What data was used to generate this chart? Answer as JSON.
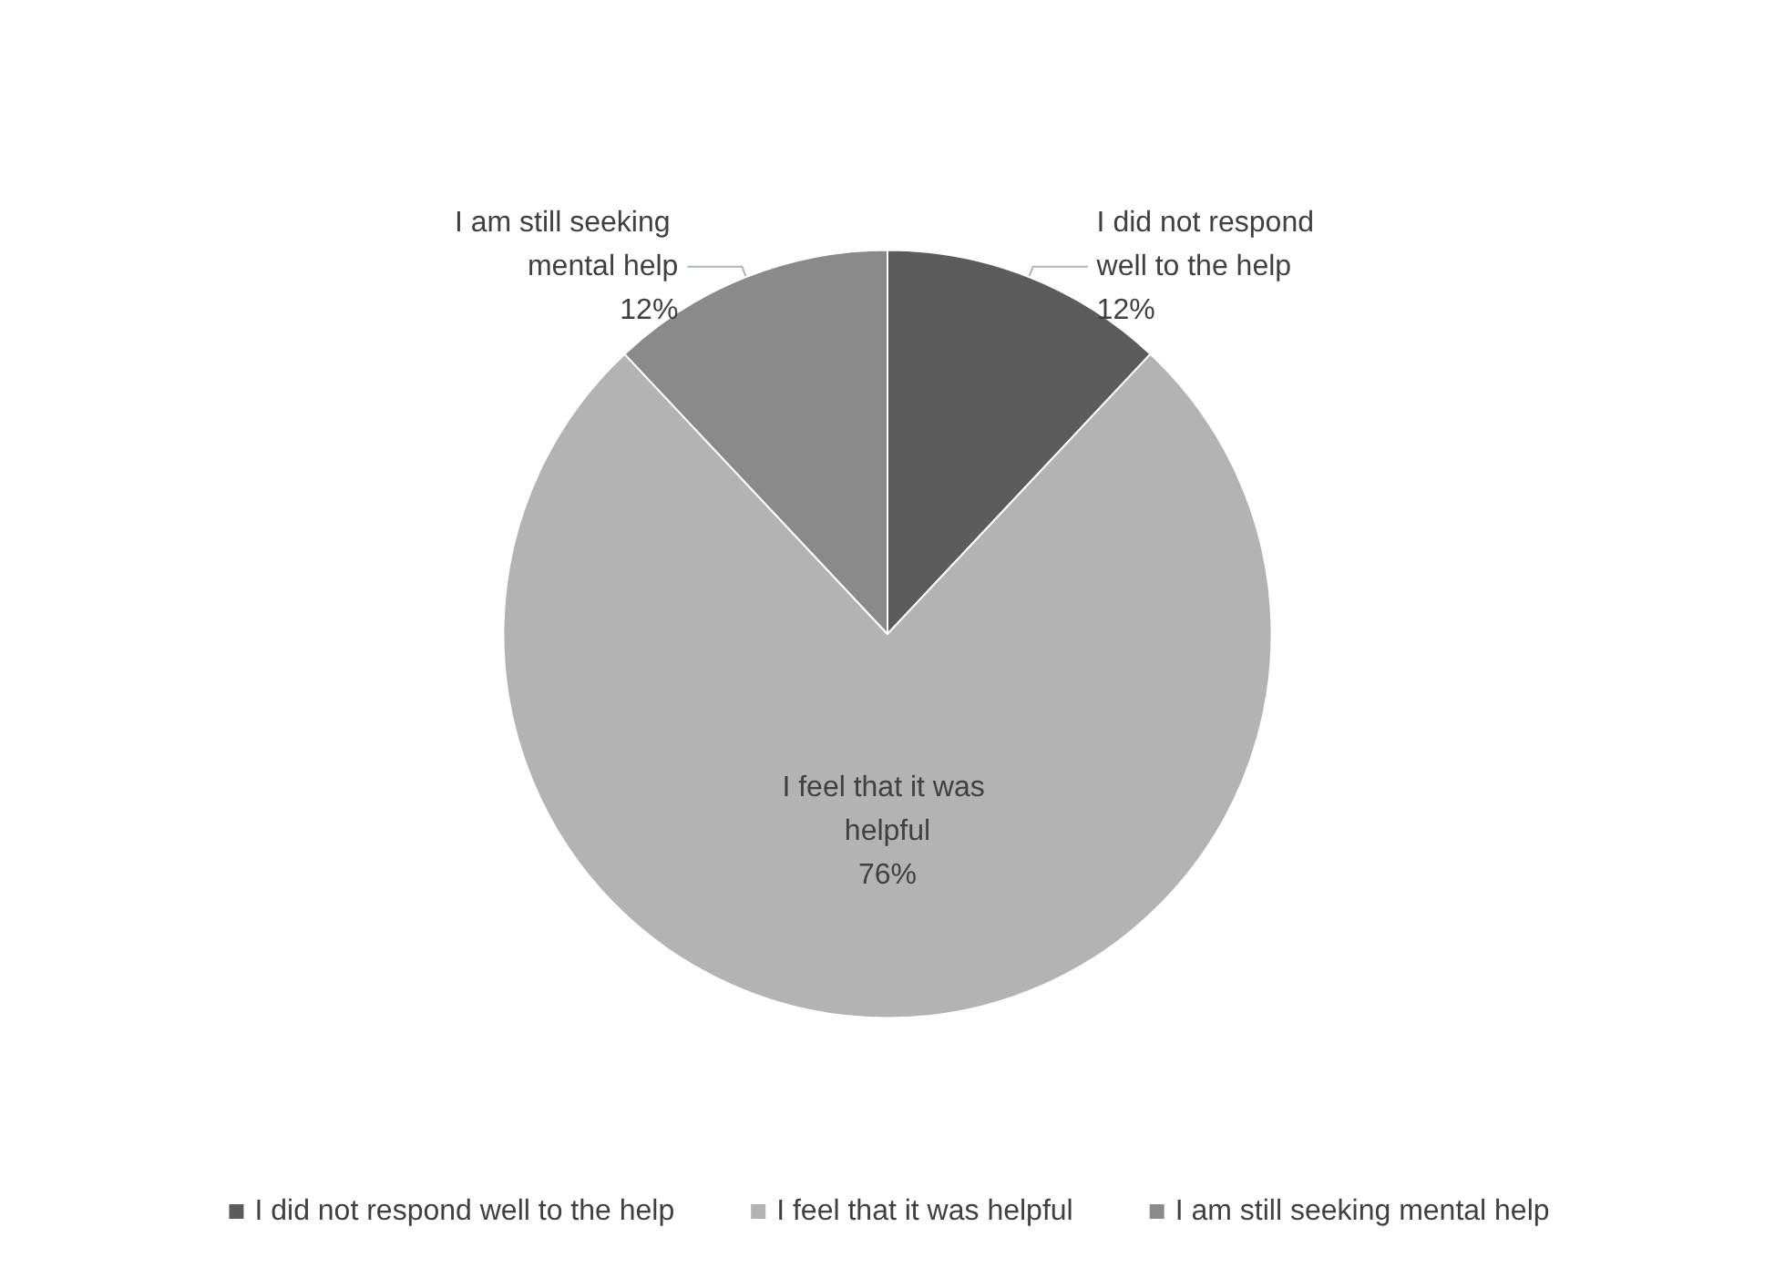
{
  "chart_data": {
    "type": "pie",
    "categories": [
      "I did not respond well to the help",
      "I feel that it was helpful",
      "I am still seeking mental help"
    ],
    "values": [
      12,
      76,
      12
    ],
    "colors": [
      "#5c5c5c",
      "#b3b3b3",
      "#8a8a8a"
    ],
    "value_labels": [
      "12%",
      "76%",
      "12%"
    ],
    "legend": "bottom"
  }
}
